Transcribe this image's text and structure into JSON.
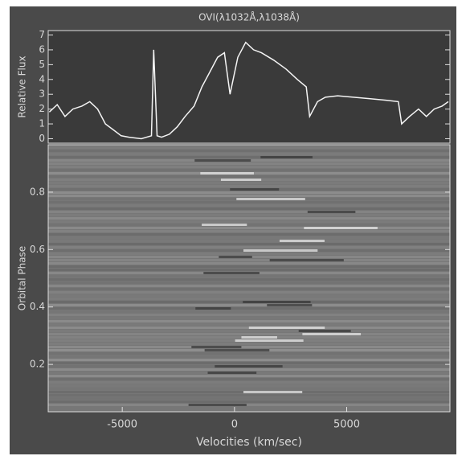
{
  "chart_data": [
    {
      "type": "line",
      "title": "OVI(λ1032Å,λ1038Å)",
      "ylabel": "Relative Flux",
      "x": [
        -8250,
        -7900,
        -7550,
        -7200,
        -6800,
        -6450,
        -6100,
        -5750,
        -5400,
        -5050,
        -4700,
        -4150,
        -3700,
        -3600,
        -3450,
        -3250,
        -2900,
        -2550,
        -2200,
        -1800,
        -1450,
        -1100,
        -750,
        -450,
        -200,
        150,
        500,
        850,
        1200,
        1750,
        2300,
        2800,
        3200,
        3350,
        3700,
        4050,
        4600,
        5300,
        6050,
        6750,
        7300,
        7450,
        7800,
        8200,
        8550,
        8900,
        9250,
        9530
      ],
      "series": [
        {
          "name": "Relative Flux",
          "color": "#f4f4f4",
          "values": [
            1.8,
            2.3,
            1.5,
            2.0,
            2.2,
            2.5,
            2.0,
            1.0,
            0.6,
            0.2,
            0.1,
            0.0,
            0.2,
            6.0,
            0.2,
            0.1,
            0.3,
            0.8,
            1.5,
            2.2,
            3.5,
            4.5,
            5.5,
            5.8,
            3.0,
            5.5,
            6.5,
            6.0,
            5.8,
            5.3,
            4.7,
            4.0,
            3.5,
            1.5,
            2.5,
            2.8,
            2.9,
            2.8,
            2.7,
            2.6,
            2.5,
            1.0,
            1.5,
            2.0,
            1.5,
            2.0,
            2.2,
            2.5
          ]
        }
      ],
      "xlim": [
        -8300,
        9600
      ],
      "ylim": [
        -0.3,
        7.3
      ],
      "yticks": [
        0,
        1,
        2,
        3,
        4,
        5,
        6,
        7
      ]
    },
    {
      "type": "image",
      "ylabel": "Orbital Phase",
      "xlabel": "Velocities (km/sec)",
      "xlim": [
        -8300,
        9600
      ],
      "xticks": [
        -5000,
        0,
        5000
      ],
      "ylim": [
        0.035,
        0.965
      ],
      "yticks": [
        0.2,
        0.4,
        0.6,
        0.8
      ]
    }
  ]
}
